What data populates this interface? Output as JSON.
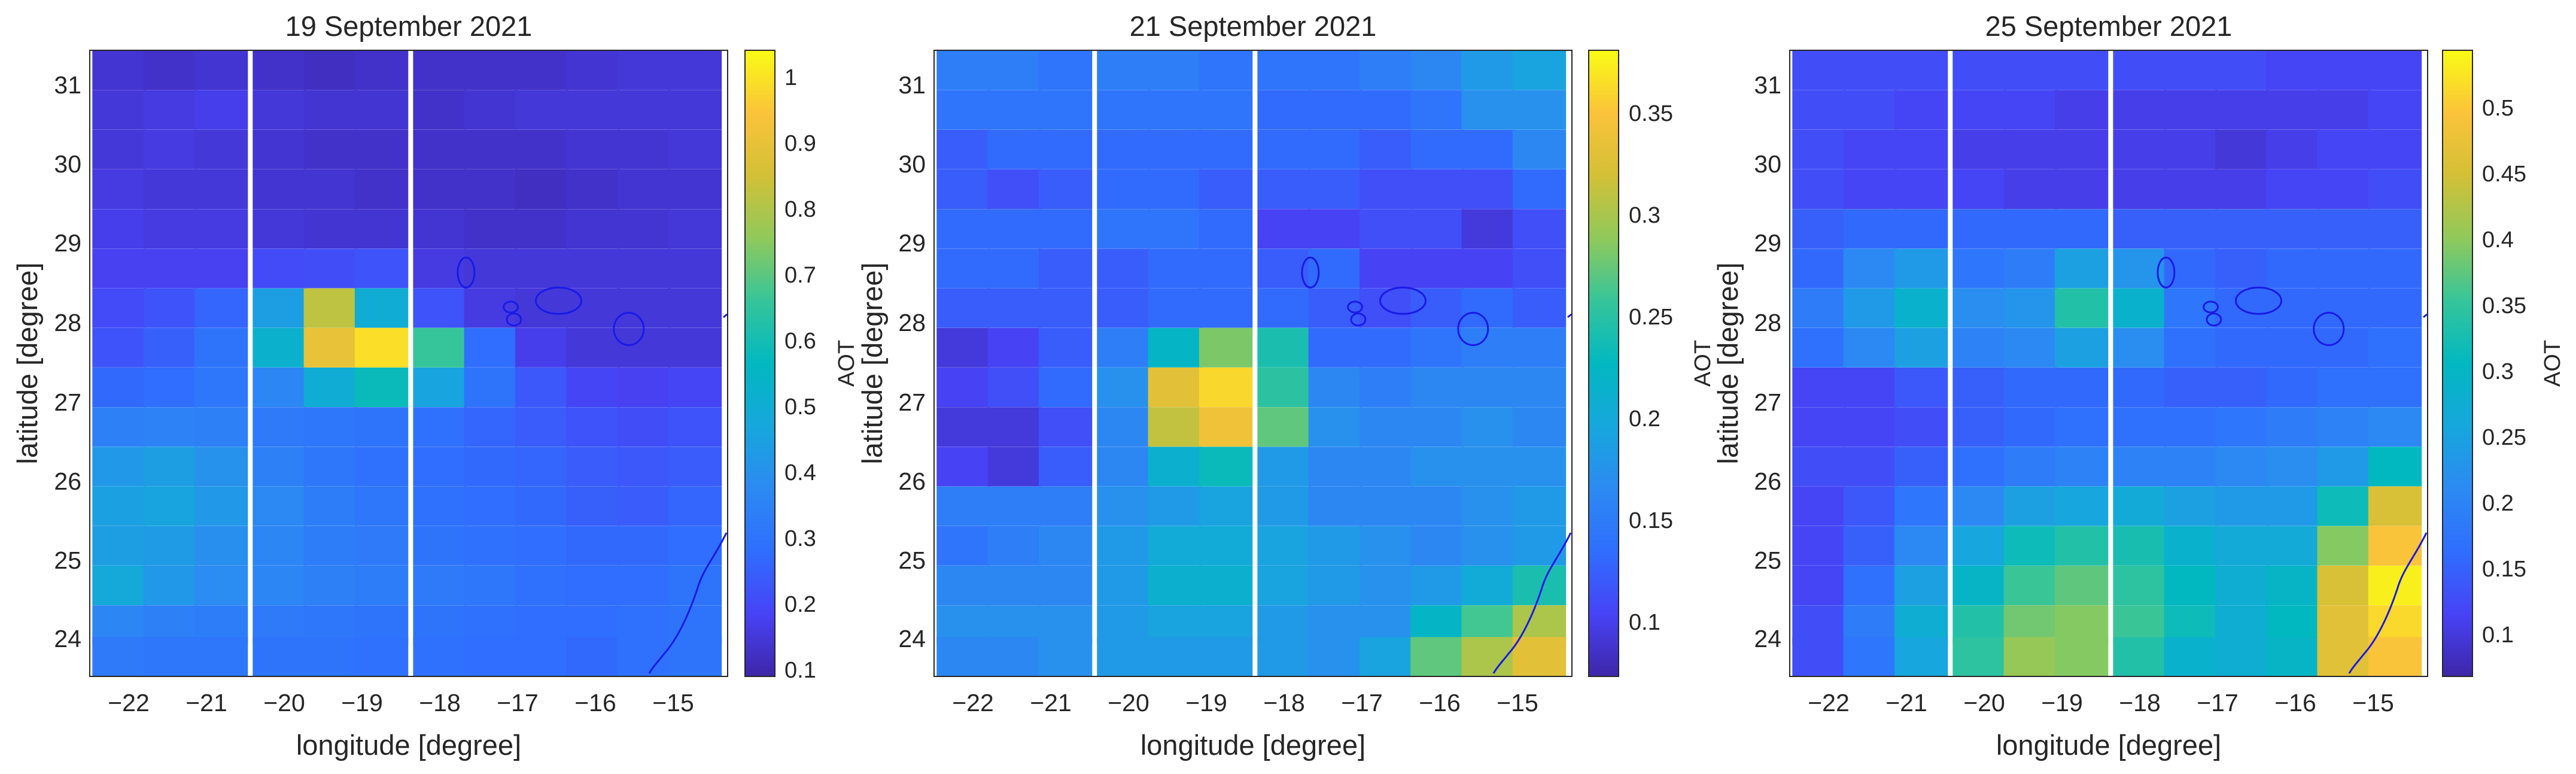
{
  "chart_data": [
    {
      "type": "heatmap",
      "title": "19 September 2021",
      "xlabel": "longitude [degree]",
      "ylabel": "latitude [degree]",
      "colorbar_label": "AOT",
      "colormap": "parula",
      "xlim": [
        -22.9,
        -14.15
      ],
      "ylim": [
        23.55,
        31.45
      ],
      "x_ticks": [
        -22,
        -21,
        -20,
        -19,
        -18,
        -17,
        -16,
        -15
      ],
      "x_tick_labels": [
        "−22",
        "−21",
        "−20",
        "−19",
        "−18",
        "−17",
        "−16",
        "−15"
      ],
      "y_ticks": [
        24,
        25,
        26,
        27,
        28,
        29,
        30,
        31
      ],
      "y_tick_labels": [
        "24",
        "25",
        "26",
        "27",
        "28",
        "29",
        "30",
        "31"
      ],
      "clim": [
        0.09,
        1.04
      ],
      "cb_ticks": [
        0.1,
        0.2,
        0.3,
        0.4,
        0.5,
        0.6,
        0.7,
        0.8,
        0.9,
        1
      ],
      "cb_tick_labels": [
        "0.1",
        "0.2",
        "0.3",
        "0.4",
        "0.5",
        "0.6",
        "0.7",
        "0.8",
        "0.9",
        "1"
      ],
      "x_centers": [
        -22.5,
        -21.8,
        -21.1,
        -20.3,
        -19.6,
        -18.9,
        -18.1,
        -17.4,
        -16.7,
        -16.0,
        -15.3,
        -14.6
      ],
      "y_centers": [
        31.2,
        30.7,
        30.2,
        29.7,
        29.2,
        28.7,
        28.2,
        27.7,
        27.2,
        26.7,
        26.2,
        25.7,
        25.2,
        24.7,
        24.2,
        23.8
      ],
      "grid": [
        [
          0.14,
          0.13,
          0.14,
          0.13,
          0.12,
          0.13,
          0.13,
          0.13,
          0.13,
          0.14,
          0.15,
          0.15
        ],
        [
          0.15,
          0.16,
          0.17,
          0.15,
          0.14,
          0.14,
          0.13,
          0.14,
          0.15,
          0.15,
          0.15,
          0.15
        ],
        [
          0.15,
          0.16,
          0.15,
          0.14,
          0.13,
          0.13,
          0.13,
          0.13,
          0.13,
          0.14,
          0.14,
          0.15
        ],
        [
          0.16,
          0.15,
          0.15,
          0.14,
          0.14,
          0.13,
          0.13,
          0.13,
          0.12,
          0.13,
          0.14,
          0.14
        ],
        [
          0.17,
          0.16,
          0.16,
          0.15,
          0.14,
          0.14,
          0.14,
          0.13,
          0.13,
          0.14,
          0.14,
          0.15
        ],
        [
          0.18,
          0.18,
          0.18,
          0.2,
          0.21,
          0.22,
          0.16,
          0.15,
          0.15,
          0.15,
          0.15,
          0.15
        ],
        [
          0.2,
          0.22,
          0.26,
          0.44,
          0.82,
          0.5,
          0.22,
          0.16,
          0.15,
          0.15,
          0.15,
          0.15
        ],
        [
          0.22,
          0.25,
          0.3,
          0.52,
          0.9,
          0.99,
          0.66,
          0.28,
          0.17,
          0.15,
          0.15,
          0.15
        ],
        [
          0.27,
          0.28,
          0.31,
          0.36,
          0.5,
          0.58,
          0.46,
          0.3,
          0.23,
          0.19,
          0.18,
          0.19
        ],
        [
          0.34,
          0.35,
          0.34,
          0.32,
          0.31,
          0.3,
          0.29,
          0.26,
          0.24,
          0.22,
          0.21,
          0.22
        ],
        [
          0.42,
          0.44,
          0.4,
          0.34,
          0.31,
          0.29,
          0.28,
          0.27,
          0.26,
          0.24,
          0.23,
          0.24
        ],
        [
          0.45,
          0.46,
          0.42,
          0.37,
          0.33,
          0.31,
          0.29,
          0.28,
          0.27,
          0.25,
          0.24,
          0.26
        ],
        [
          0.44,
          0.43,
          0.39,
          0.36,
          0.33,
          0.32,
          0.3,
          0.29,
          0.28,
          0.27,
          0.27,
          0.28
        ],
        [
          0.48,
          0.42,
          0.38,
          0.36,
          0.34,
          0.33,
          0.32,
          0.31,
          0.29,
          0.28,
          0.28,
          0.3
        ],
        [
          0.36,
          0.34,
          0.33,
          0.32,
          0.31,
          0.3,
          0.3,
          0.29,
          0.28,
          0.28,
          0.29,
          0.3
        ],
        [
          0.32,
          0.31,
          0.31,
          0.3,
          0.3,
          0.29,
          0.29,
          0.28,
          0.28,
          0.27,
          0.29,
          0.3
        ]
      ]
    },
    {
      "type": "heatmap",
      "title": "21 September 2021",
      "xlabel": "longitude [degree]",
      "ylabel": "latitude [degree]",
      "colorbar_label": "AOT",
      "colormap": "parula",
      "xlim": [
        -22.9,
        -14.15
      ],
      "ylim": [
        23.55,
        31.45
      ],
      "x_ticks": [
        -22,
        -21,
        -20,
        -19,
        -18,
        -17,
        -16,
        -15
      ],
      "x_tick_labels": [
        "−22",
        "−21",
        "−20",
        "−19",
        "−18",
        "−17",
        "−16",
        "−15"
      ],
      "y_ticks": [
        24,
        25,
        26,
        27,
        28,
        29,
        30,
        31
      ],
      "y_tick_labels": [
        "24",
        "25",
        "26",
        "27",
        "28",
        "29",
        "30",
        "31"
      ],
      "clim": [
        0.07,
        0.38
      ],
      "cb_ticks": [
        0.1,
        0.15,
        0.2,
        0.25,
        0.3,
        0.35
      ],
      "cb_tick_labels": [
        "0.1",
        "0.15",
        "0.2",
        "0.25",
        "0.3",
        "0.35"
      ],
      "x_centers": [
        -22.5,
        -21.8,
        -21.1,
        -20.3,
        -19.6,
        -18.9,
        -18.1,
        -17.4,
        -16.7,
        -16.0,
        -15.3,
        -14.6
      ],
      "y_centers": [
        31.2,
        30.7,
        30.2,
        29.7,
        29.2,
        28.7,
        28.2,
        27.7,
        27.2,
        26.7,
        26.2,
        25.7,
        25.2,
        24.7,
        24.2,
        23.8
      ],
      "grid": [
        [
          0.15,
          0.15,
          0.14,
          0.15,
          0.15,
          0.14,
          0.14,
          0.14,
          0.15,
          0.16,
          0.18,
          0.19
        ],
        [
          0.14,
          0.14,
          0.14,
          0.14,
          0.14,
          0.14,
          0.13,
          0.13,
          0.13,
          0.14,
          0.17,
          0.17
        ],
        [
          0.12,
          0.13,
          0.13,
          0.13,
          0.13,
          0.13,
          0.13,
          0.13,
          0.12,
          0.13,
          0.13,
          0.16
        ],
        [
          0.12,
          0.11,
          0.12,
          0.13,
          0.13,
          0.12,
          0.12,
          0.12,
          0.11,
          0.11,
          0.11,
          0.13
        ],
        [
          0.13,
          0.13,
          0.13,
          0.14,
          0.14,
          0.13,
          0.1,
          0.1,
          0.11,
          0.11,
          0.09,
          0.11
        ],
        [
          0.13,
          0.13,
          0.12,
          0.12,
          0.13,
          0.13,
          0.12,
          0.13,
          0.1,
          0.1,
          0.1,
          0.11
        ],
        [
          0.12,
          0.12,
          0.12,
          0.12,
          0.13,
          0.13,
          0.13,
          0.12,
          0.11,
          0.12,
          0.13,
          0.12
        ],
        [
          0.09,
          0.1,
          0.12,
          0.15,
          0.22,
          0.28,
          0.24,
          0.13,
          0.13,
          0.14,
          0.15,
          0.15
        ],
        [
          0.1,
          0.11,
          0.13,
          0.17,
          0.33,
          0.36,
          0.25,
          0.16,
          0.15,
          0.16,
          0.16,
          0.16
        ],
        [
          0.09,
          0.09,
          0.11,
          0.16,
          0.31,
          0.34,
          0.27,
          0.17,
          0.16,
          0.16,
          0.17,
          0.16
        ],
        [
          0.1,
          0.09,
          0.12,
          0.16,
          0.21,
          0.23,
          0.18,
          0.16,
          0.16,
          0.17,
          0.17,
          0.17
        ],
        [
          0.15,
          0.15,
          0.15,
          0.17,
          0.18,
          0.19,
          0.18,
          0.16,
          0.16,
          0.16,
          0.17,
          0.18
        ],
        [
          0.14,
          0.15,
          0.16,
          0.18,
          0.2,
          0.2,
          0.19,
          0.18,
          0.17,
          0.16,
          0.17,
          0.18
        ],
        [
          0.16,
          0.16,
          0.16,
          0.18,
          0.21,
          0.21,
          0.19,
          0.18,
          0.17,
          0.18,
          0.2,
          0.24
        ],
        [
          0.17,
          0.17,
          0.17,
          0.18,
          0.19,
          0.19,
          0.18,
          0.17,
          0.17,
          0.22,
          0.26,
          0.3
        ],
        [
          0.16,
          0.16,
          0.17,
          0.18,
          0.18,
          0.18,
          0.18,
          0.17,
          0.19,
          0.27,
          0.3,
          0.33
        ]
      ]
    },
    {
      "type": "heatmap",
      "title": "25 September 2021",
      "xlabel": "longitude [degree]",
      "ylabel": "latitude [degree]",
      "colorbar_label": "AOT",
      "colormap": "parula",
      "xlim": [
        -22.9,
        -14.15
      ],
      "ylim": [
        23.55,
        31.45
      ],
      "x_ticks": [
        -22,
        -21,
        -20,
        -19,
        -18,
        -17,
        -16,
        -15
      ],
      "x_tick_labels": [
        "−22",
        "−21",
        "−20",
        "−19",
        "−18",
        "−17",
        "−16",
        "−15"
      ],
      "y_ticks": [
        24,
        25,
        26,
        27,
        28,
        29,
        30,
        31
      ],
      "y_tick_labels": [
        "24",
        "25",
        "26",
        "27",
        "28",
        "29",
        "30",
        "31"
      ],
      "clim": [
        0.06,
        0.54
      ],
      "cb_ticks": [
        0.1,
        0.15,
        0.2,
        0.25,
        0.3,
        0.35,
        0.4,
        0.45,
        0.5
      ],
      "cb_tick_labels": [
        "0.1",
        "0.15",
        "0.2",
        "0.25",
        "0.3",
        "0.35",
        "0.4",
        "0.45",
        "0.5"
      ],
      "x_centers": [
        -22.5,
        -21.8,
        -21.1,
        -20.3,
        -19.6,
        -18.9,
        -18.1,
        -17.4,
        -16.7,
        -16.0,
        -15.3,
        -14.6
      ],
      "y_centers": [
        31.2,
        30.7,
        30.2,
        29.7,
        29.2,
        28.7,
        28.2,
        27.7,
        27.2,
        26.7,
        26.2,
        25.7,
        25.2,
        24.7,
        24.2,
        23.8
      ],
      "grid": [
        [
          0.12,
          0.12,
          0.12,
          0.12,
          0.12,
          0.12,
          0.12,
          0.12,
          0.12,
          0.11,
          0.11,
          0.11
        ],
        [
          0.12,
          0.12,
          0.11,
          0.11,
          0.11,
          0.1,
          0.1,
          0.1,
          0.1,
          0.1,
          0.1,
          0.11
        ],
        [
          0.12,
          0.11,
          0.11,
          0.1,
          0.1,
          0.1,
          0.1,
          0.1,
          0.09,
          0.1,
          0.11,
          0.11
        ],
        [
          0.12,
          0.11,
          0.11,
          0.11,
          0.1,
          0.1,
          0.1,
          0.1,
          0.1,
          0.11,
          0.11,
          0.12
        ],
        [
          0.14,
          0.15,
          0.15,
          0.15,
          0.15,
          0.15,
          0.14,
          0.14,
          0.14,
          0.14,
          0.14,
          0.14
        ],
        [
          0.15,
          0.2,
          0.23,
          0.17,
          0.18,
          0.24,
          0.22,
          0.15,
          0.14,
          0.15,
          0.15,
          0.15
        ],
        [
          0.18,
          0.23,
          0.28,
          0.21,
          0.22,
          0.33,
          0.28,
          0.17,
          0.15,
          0.15,
          0.15,
          0.15
        ],
        [
          0.16,
          0.2,
          0.24,
          0.19,
          0.2,
          0.24,
          0.21,
          0.16,
          0.15,
          0.15,
          0.15,
          0.16
        ],
        [
          0.11,
          0.11,
          0.13,
          0.14,
          0.15,
          0.15,
          0.15,
          0.14,
          0.14,
          0.15,
          0.16,
          0.16
        ],
        [
          0.11,
          0.11,
          0.12,
          0.14,
          0.15,
          0.16,
          0.16,
          0.16,
          0.17,
          0.18,
          0.19,
          0.2
        ],
        [
          0.12,
          0.12,
          0.14,
          0.16,
          0.18,
          0.19,
          0.19,
          0.19,
          0.2,
          0.21,
          0.23,
          0.3
        ],
        [
          0.11,
          0.13,
          0.17,
          0.2,
          0.24,
          0.25,
          0.26,
          0.24,
          0.23,
          0.23,
          0.31,
          0.45
        ],
        [
          0.11,
          0.14,
          0.2,
          0.25,
          0.31,
          0.33,
          0.32,
          0.28,
          0.26,
          0.26,
          0.39,
          0.49
        ],
        [
          0.11,
          0.16,
          0.24,
          0.29,
          0.35,
          0.37,
          0.34,
          0.3,
          0.27,
          0.29,
          0.45,
          0.53
        ],
        [
          0.12,
          0.18,
          0.27,
          0.33,
          0.38,
          0.39,
          0.35,
          0.31,
          0.27,
          0.3,
          0.46,
          0.51
        ],
        [
          0.12,
          0.17,
          0.25,
          0.34,
          0.4,
          0.39,
          0.33,
          0.28,
          0.27,
          0.29,
          0.46,
          0.49
        ]
      ]
    }
  ]
}
